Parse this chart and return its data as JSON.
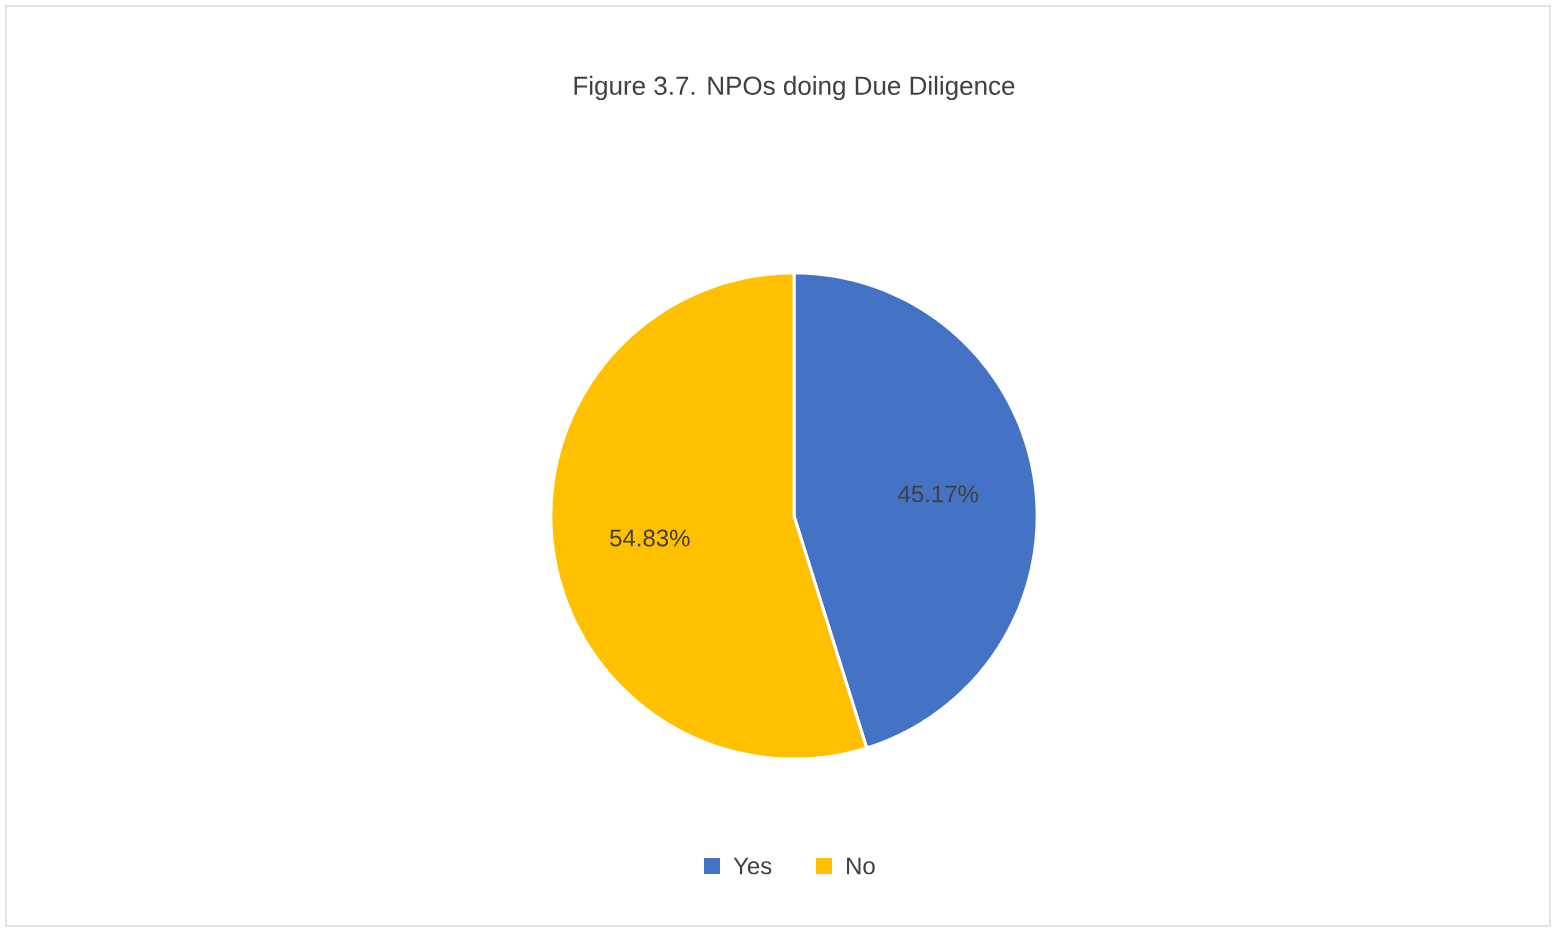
{
  "chart_data": {
    "type": "pie",
    "title": "Figure 3.7. NPOs doing Due Diligence",
    "categories": [
      "Yes",
      "No"
    ],
    "values": [
      45.17,
      54.83
    ],
    "value_labels": [
      "45.17%",
      "54.83%"
    ],
    "colors": [
      "#4472c4",
      "#ffc000"
    ],
    "legend": "bottom"
  }
}
